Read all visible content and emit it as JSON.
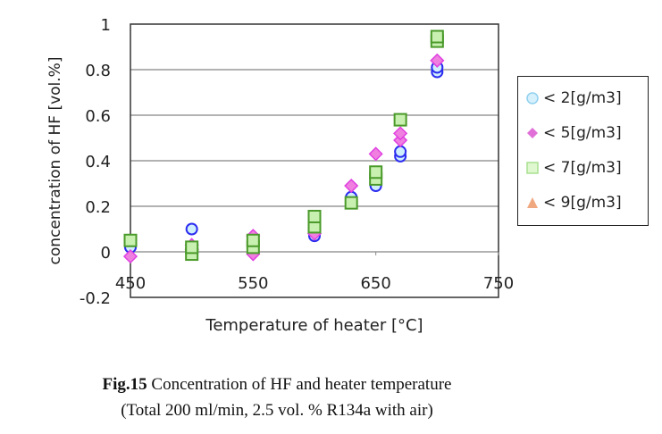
{
  "chart_data": {
    "type": "scatter",
    "xlabel": "Temperature of heater [°C]",
    "ylabel": "concentration of HF [vol.%]",
    "xlim": [
      450,
      750
    ],
    "ylim": [
      -0.2,
      1
    ],
    "xticks": [
      450,
      550,
      650,
      750
    ],
    "yticks": [
      -0.2,
      0,
      0.2,
      0.4,
      0.6,
      0.8,
      1
    ],
    "ytick_labels": [
      "-0.2",
      "0",
      "0.2",
      "0.4",
      "0.6",
      "0.8",
      "1"
    ],
    "grid": "horizontal",
    "legend_position": "right",
    "series": [
      {
        "name": "< 2[g/m3]",
        "marker": "circle",
        "stroke": "#2b2bf0",
        "fill": "#cfeefc",
        "points": [
          [
            450,
            0.02
          ],
          [
            500,
            0.1
          ],
          [
            550,
            0.03
          ],
          [
            600,
            0.07
          ],
          [
            630,
            0.24
          ],
          [
            650,
            0.29
          ],
          [
            670,
            0.42
          ],
          [
            670,
            0.44
          ],
          [
            700,
            0.79
          ],
          [
            700,
            0.81
          ]
        ]
      },
      {
        "name": "< 5[g/m3]",
        "marker": "diamond",
        "stroke": "#e040e0",
        "fill": "#f080e0",
        "points": [
          [
            450,
            -0.02
          ],
          [
            500,
            0.01
          ],
          [
            500,
            0.03
          ],
          [
            550,
            -0.01
          ],
          [
            550,
            0.07
          ],
          [
            600,
            0.08
          ],
          [
            630,
            0.29
          ],
          [
            650,
            0.43
          ],
          [
            670,
            0.49
          ],
          [
            670,
            0.52
          ],
          [
            700,
            0.84
          ]
        ]
      },
      {
        "name": "< 7[g/m3]",
        "marker": "square",
        "stroke": "#4a9a2a",
        "fill": "#c8f0b0",
        "points": [
          [
            450,
            0.05
          ],
          [
            500,
            -0.01
          ],
          [
            500,
            0.02
          ],
          [
            550,
            0.02
          ],
          [
            550,
            0.05
          ],
          [
            600,
            0.11
          ],
          [
            600,
            0.155
          ],
          [
            630,
            0.215
          ],
          [
            650,
            0.32
          ],
          [
            650,
            0.35
          ],
          [
            670,
            0.58
          ],
          [
            700,
            0.925
          ],
          [
            700,
            0.945
          ]
        ]
      },
      {
        "name": "< 9[g/m3]",
        "marker": "triangle",
        "stroke": "#e89a70",
        "fill": "#f0a880",
        "points": []
      }
    ]
  },
  "caption": {
    "fig_label": "Fig.15",
    "title": " Concentration of HF and heater temperature",
    "line2": "(Total 200 ml/min, 2.5 vol. % R134a with air)"
  }
}
